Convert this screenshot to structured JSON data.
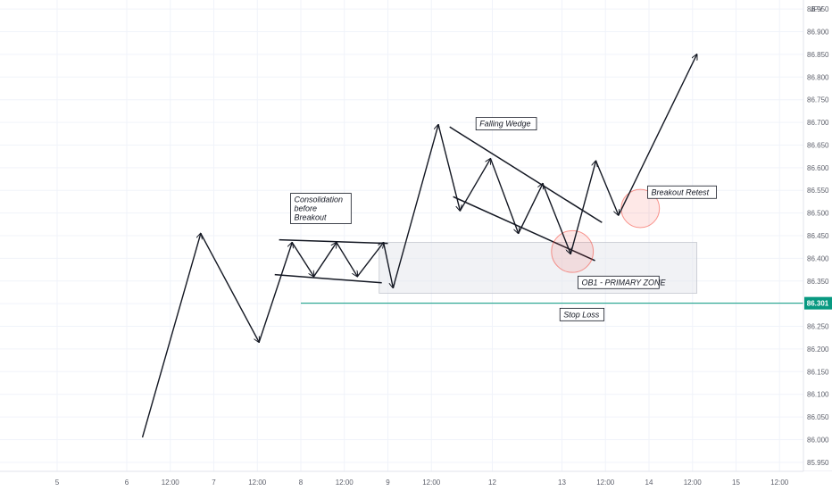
{
  "chart_data": {
    "type": "line",
    "currency": "JPY",
    "x_ticks": [
      "5",
      "6",
      "12:00",
      "7",
      "12:00",
      "8",
      "12:00",
      "9",
      "12:00",
      "12",
      "13",
      "12:00",
      "14",
      "12:00",
      "15",
      "12:00"
    ],
    "y_ticks": [
      "86.950",
      "86.900",
      "86.850",
      "86.800",
      "86.750",
      "86.700",
      "86.650",
      "86.600",
      "86.550",
      "86.500",
      "86.450",
      "86.400",
      "86.350",
      "86.300",
      "86.250",
      "86.200",
      "86.150",
      "86.100",
      "86.050",
      "86.000",
      "85.950"
    ],
    "ylim": [
      85.93,
      86.97
    ],
    "grid": true,
    "series": [
      {
        "style": "arrow-path",
        "points": [
          {
            "x": 0.98,
            "y": 86.005
          },
          {
            "x": 1.65,
            "y": 86.455
          },
          {
            "x": 2.32,
            "y": 86.215
          },
          {
            "x": 2.7,
            "y": 86.435
          },
          {
            "x": 2.95,
            "y": 86.36
          },
          {
            "x": 3.21,
            "y": 86.435
          },
          {
            "x": 3.45,
            "y": 86.36
          },
          {
            "x": 3.75,
            "y": 86.435
          },
          {
            "x": 3.86,
            "y": 86.335
          },
          {
            "x": 4.38,
            "y": 86.695
          },
          {
            "x": 4.63,
            "y": 86.505
          },
          {
            "x": 4.98,
            "y": 86.62
          },
          {
            "x": 5.3,
            "y": 86.455
          },
          {
            "x": 5.58,
            "y": 86.565
          },
          {
            "x": 5.9,
            "y": 86.41
          },
          {
            "x": 6.19,
            "y": 86.615
          },
          {
            "x": 6.45,
            "y": 86.495
          },
          {
            "x": 7.35,
            "y": 86.85
          }
        ]
      }
    ],
    "stop_loss": {
      "label": "Stop Loss",
      "value": 86.301,
      "price_label": "86.301",
      "color": "#089981"
    },
    "zones": [
      {
        "label": "OB1 - PRIMARY ZONE",
        "x0": 3.7,
        "x1": 7.35,
        "y0": 86.323,
        "y1": 86.435,
        "color": "#e6e8ec"
      }
    ],
    "trendlines": [
      {
        "x0": 2.55,
        "y0": 86.441,
        "x1": 3.8,
        "y1": 86.433
      },
      {
        "x0": 2.5,
        "y0": 86.364,
        "x1": 3.73,
        "y1": 86.346
      },
      {
        "x0": 4.51,
        "y0": 86.69,
        "x1": 6.26,
        "y1": 86.479
      },
      {
        "x0": 4.55,
        "y0": 86.536,
        "x1": 6.18,
        "y1": 86.395
      }
    ],
    "circles": [
      {
        "x": 5.92,
        "y": 86.415,
        "r_days": 0.24,
        "color": "#f44336"
      },
      {
        "x": 6.7,
        "y": 86.51,
        "r_days": 0.22,
        "color": "#f44336"
      }
    ],
    "annotations": [
      {
        "name": "consolidation-note",
        "lines": [
          "Consolidation",
          "before",
          "Breakout"
        ],
        "x": 3.03,
        "y": 86.51
      },
      {
        "name": "falling-wedge-note",
        "lines": [
          "Falling Wedge"
        ],
        "x": 5.16,
        "y": 86.697
      },
      {
        "name": "breakout-retest-note",
        "lines": [
          "Breakout Retest"
        ],
        "x": 7.18,
        "y": 86.546
      },
      {
        "name": "ob1-zone-note",
        "lines": [
          "OB1 - PRIMARY ZONE"
        ],
        "x": 6.45,
        "y": 86.347
      },
      {
        "name": "stop-loss-note",
        "lines": [
          "Stop Loss"
        ],
        "x": 6.03,
        "y": 86.276
      }
    ]
  }
}
